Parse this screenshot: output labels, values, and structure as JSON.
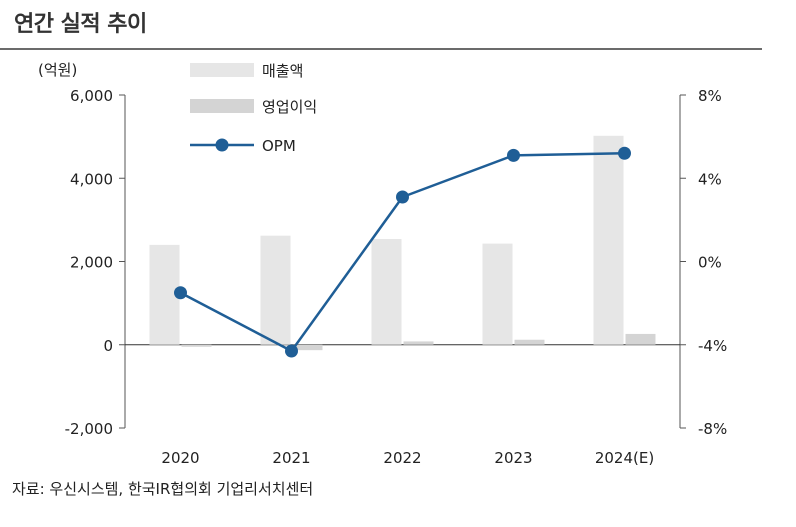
{
  "title": "연간 실적 추이",
  "source": "자료: 우신시스템, 한국IR협의회 기업리서치센터",
  "chart_data": {
    "type": "bar",
    "categories": [
      "2020",
      "2021",
      "2022",
      "2023",
      "2024(E)"
    ],
    "y_left_unit": "(억원)",
    "y_left_ticks": [
      "6,000",
      "4,000",
      "2,000",
      "0",
      "-2,000"
    ],
    "y_left_range": [
      -2000,
      6000
    ],
    "y_right_ticks": [
      "8%",
      "4%",
      "0%",
      "-4%",
      "-8%"
    ],
    "y_right_range": [
      -8,
      8
    ],
    "series": [
      {
        "name": "매출액",
        "axis": "left",
        "kind": "bar",
        "color": "#e6e6e6",
        "values": [
          2400,
          2620,
          2540,
          2430,
          5020
        ]
      },
      {
        "name": "영업이익",
        "axis": "left",
        "kind": "bar",
        "color": "#d4d4d4",
        "values": [
          -30,
          -130,
          80,
          120,
          260
        ]
      },
      {
        "name": "OPM",
        "axis": "right",
        "kind": "line",
        "color": "#1f5e96",
        "values": [
          -1.5,
          -4.3,
          3.1,
          5.1,
          5.2
        ]
      }
    ],
    "legend_placement": "top-left",
    "grid": false
  }
}
